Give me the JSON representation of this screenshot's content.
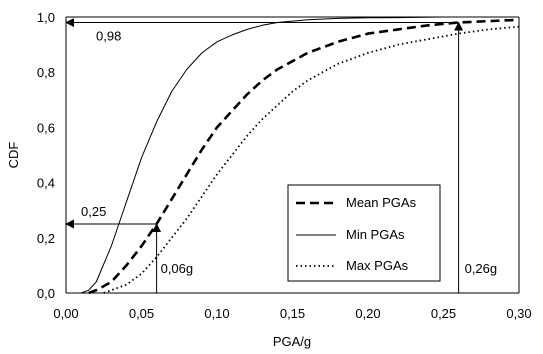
{
  "chart_data": {
    "type": "line",
    "xlabel": "PGA/g",
    "ylabel": "CDF",
    "xlim": [
      0.0,
      0.3
    ],
    "ylim": [
      0.0,
      1.0
    ],
    "x_ticks": [
      "0,00",
      "0,05",
      "0,10",
      "0,15",
      "0,20",
      "0,25",
      "0,30"
    ],
    "y_ticks": [
      "0,0",
      "0,2",
      "0,4",
      "0,6",
      "0,8",
      "1,0"
    ],
    "grid": false,
    "legend_position": "bottom-right",
    "series": [
      {
        "name": "Mean PGAs",
        "style": "dashed",
        "x": [
          0.015,
          0.02,
          0.03,
          0.04,
          0.05,
          0.06,
          0.07,
          0.08,
          0.09,
          0.1,
          0.11,
          0.12,
          0.13,
          0.14,
          0.15,
          0.16,
          0.17,
          0.18,
          0.19,
          0.2,
          0.22,
          0.24,
          0.26,
          0.28,
          0.3
        ],
        "y": [
          0.0,
          0.01,
          0.04,
          0.1,
          0.17,
          0.25,
          0.34,
          0.43,
          0.52,
          0.6,
          0.66,
          0.72,
          0.77,
          0.81,
          0.84,
          0.87,
          0.89,
          0.91,
          0.925,
          0.94,
          0.955,
          0.97,
          0.98,
          0.985,
          0.99
        ]
      },
      {
        "name": "Min PGAs",
        "style": "solid",
        "x": [
          0.01,
          0.015,
          0.02,
          0.03,
          0.04,
          0.05,
          0.06,
          0.07,
          0.08,
          0.09,
          0.1,
          0.11,
          0.12,
          0.13,
          0.14,
          0.15,
          0.16,
          0.18,
          0.2,
          0.22,
          0.25,
          0.3
        ],
        "y": [
          0.0,
          0.01,
          0.04,
          0.17,
          0.33,
          0.49,
          0.62,
          0.73,
          0.81,
          0.87,
          0.91,
          0.935,
          0.955,
          0.97,
          0.98,
          0.985,
          0.99,
          0.995,
          0.997,
          0.998,
          1.0,
          1.0
        ]
      },
      {
        "name": "Max PGAs",
        "style": "dotted",
        "x": [
          0.025,
          0.03,
          0.04,
          0.05,
          0.06,
          0.07,
          0.08,
          0.09,
          0.1,
          0.11,
          0.12,
          0.13,
          0.14,
          0.15,
          0.16,
          0.17,
          0.18,
          0.19,
          0.2,
          0.22,
          0.24,
          0.26,
          0.28,
          0.3
        ],
        "y": [
          0.0,
          0.01,
          0.03,
          0.07,
          0.13,
          0.2,
          0.27,
          0.35,
          0.43,
          0.5,
          0.57,
          0.63,
          0.68,
          0.73,
          0.77,
          0.8,
          0.83,
          0.85,
          0.87,
          0.9,
          0.92,
          0.94,
          0.955,
          0.965
        ]
      }
    ],
    "annotations": [
      {
        "label": "0,98",
        "type": "arrow-to-yaxis",
        "from": [
          0.26,
          0.98
        ],
        "to": [
          0.0,
          0.98
        ]
      },
      {
        "label": "0,26g",
        "type": "arrow-up",
        "from": [
          0.26,
          0.0
        ],
        "to": [
          0.26,
          0.98
        ]
      },
      {
        "label": "0,25",
        "type": "arrow-to-yaxis",
        "from": [
          0.06,
          0.25
        ],
        "to": [
          0.0,
          0.25
        ]
      },
      {
        "label": "0,06g",
        "type": "arrow-up",
        "from": [
          0.06,
          0.0
        ],
        "to": [
          0.06,
          0.25
        ]
      }
    ]
  }
}
